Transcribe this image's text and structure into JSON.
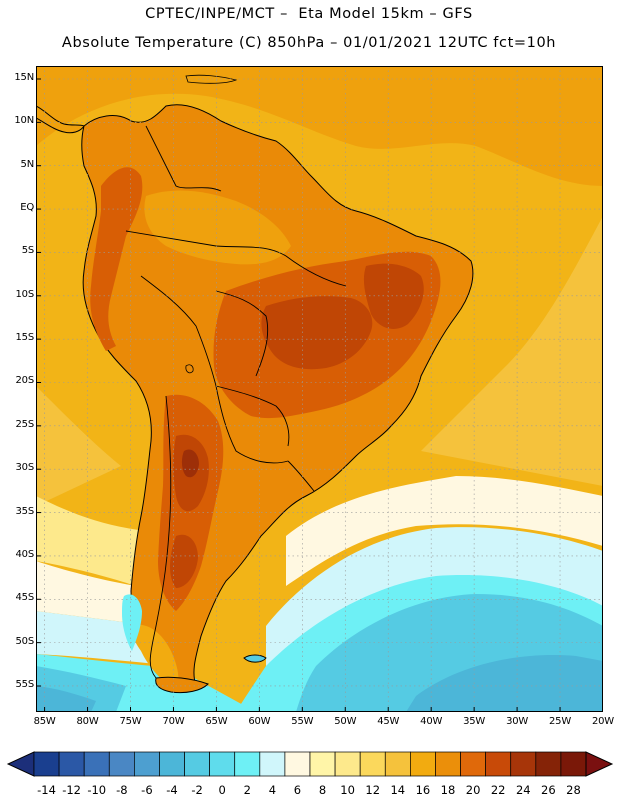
{
  "header": {
    "line1": "CPTEC/INPE/MCT –  Eta Model 15km – GFS",
    "line2": "Absolute Temperature (C) 850hPa – 01/01/2021 12UTC fct=10h"
  },
  "map": {
    "lat_labels": [
      "15N",
      "10N",
      "5N",
      "EQ",
      "5S",
      "10S",
      "15S",
      "20S",
      "25S",
      "30S",
      "35S",
      "40S",
      "45S",
      "50S",
      "55S"
    ],
    "lat_values": [
      15,
      10,
      5,
      0,
      -5,
      -10,
      -15,
      -20,
      -25,
      -30,
      -35,
      -40,
      -45,
      -50,
      -55
    ],
    "lon_labels": [
      "85W",
      "80W",
      "75W",
      "70W",
      "65W",
      "60W",
      "55W",
      "50W",
      "45W",
      "40W",
      "35W",
      "30W",
      "25W",
      "20W"
    ],
    "lon_values": [
      -85,
      -80,
      -75,
      -70,
      -65,
      -60,
      -55,
      -50,
      -45,
      -40,
      -35,
      -30,
      -25,
      -20
    ],
    "lon_range": [
      -86,
      -20
    ],
    "lat_range": [
      -58,
      16.5
    ],
    "grid": true,
    "colors": {
      "ocean_n": "#f2b417",
      "ocean_n_band": "#efa10d",
      "land_mid": "#ea8a07",
      "land_hot": "#d85e05",
      "land_hotter": "#c04605",
      "land_hottest": "#9d2f08",
      "coast": "#000000",
      "frame": "#000000",
      "grid": "#9a9a9a"
    }
  },
  "colorbar": {
    "labels": [
      "-14",
      "-12",
      "-10",
      "-8",
      "-6",
      "-4",
      "-2",
      "0",
      "2",
      "4",
      "6",
      "8",
      "10",
      "12",
      "14",
      "16",
      "18",
      "20",
      "22",
      "24",
      "26",
      "28"
    ],
    "colors": [
      "#1a3f8f",
      "#2b58a6",
      "#3a71b8",
      "#4a87c4",
      "#4d9fd0",
      "#4cb6d8",
      "#55cbe3",
      "#5fdcec",
      "#6ef0f5",
      "#d0f6fb",
      "#fff8e1",
      "#fff5a8",
      "#fde98c",
      "#fbd85c",
      "#f5c23c",
      "#f2ab10",
      "#eb8f0a",
      "#e0690a",
      "#c84a08",
      "#a73509",
      "#852307",
      "#7a1808"
    ],
    "underflow_color": "#1c2f7a",
    "overflow_color": "#7a1010"
  }
}
